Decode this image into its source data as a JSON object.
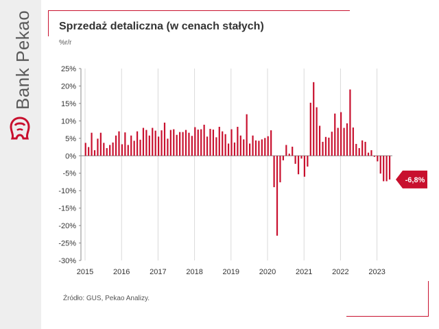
{
  "branding": {
    "name": "Bank Pekao",
    "accent": "#c8102e",
    "icon": "bison-logo-icon"
  },
  "header": {
    "title": "Sprzedaż detaliczna (w cenach stałych)",
    "unit": "%r/r"
  },
  "footer": {
    "source": "Źródło: GUS, Pekao Analizy."
  },
  "chart_data": {
    "type": "bar",
    "title": "Sprzedaż detaliczna (w cenach stałych)",
    "ylabel": "%r/r",
    "xlabel": "",
    "ylim": [
      -30,
      25
    ],
    "yticks": [
      25,
      20,
      15,
      10,
      5,
      0,
      -5,
      -10,
      -15,
      -20,
      -25,
      -30
    ],
    "ytick_labels": [
      "25%",
      "20%",
      "15%",
      "10%",
      "5%",
      "0%",
      "-5%",
      "-10%",
      "-15%",
      "-20%",
      "-25%",
      "-30%"
    ],
    "xtick_labels": [
      "2015",
      "2016",
      "2017",
      "2018",
      "2019",
      "2020",
      "2021",
      "2022",
      "2023"
    ],
    "grid": true,
    "grid_axis": "x",
    "bar_color": "#c8102e",
    "start": "2015-01",
    "frequency": "monthly",
    "values": [
      3.7,
      2.5,
      6.6,
      1.6,
      4.9,
      6.6,
      3.7,
      2.2,
      3.1,
      3.8,
      5.8,
      7.0,
      3.3,
      6.7,
      3.1,
      5.8,
      4.3,
      7.0,
      4.6,
      8.0,
      7.4,
      5.8,
      8.0,
      7.2,
      5.5,
      7.3,
      9.5,
      4.9,
      7.4,
      7.6,
      6.0,
      6.8,
      6.8,
      7.4,
      6.6,
      5.7,
      8.2,
      7.5,
      7.6,
      8.9,
      5.5,
      7.7,
      7.5,
      5.3,
      8.3,
      7.0,
      6.2,
      3.5,
      7.6,
      3.8,
      8.3,
      5.8,
      4.7,
      11.9,
      3.5,
      5.8,
      4.4,
      4.3,
      4.7,
      5.1,
      5.6,
      7.3,
      -9.0,
      -22.9,
      -7.6,
      -1.3,
      3.1,
      0.6,
      2.6,
      -2.3,
      -5.3,
      -0.8,
      -6.0,
      -3.1,
      15.2,
      21.1,
      13.9,
      8.6,
      4.0,
      5.4,
      5.2,
      6.9,
      12.1,
      8.0,
      12.5,
      8.0,
      9.3,
      19.0,
      8.1,
      3.4,
      2.2,
      4.4,
      4.0,
      0.9,
      1.6,
      -0.3,
      -1.6,
      -5.1,
      -7.3,
      -7.3,
      -6.8
    ],
    "annotations": [
      {
        "text": "-6,8%",
        "value": -6.8,
        "style": "red-callout-arrow"
      }
    ]
  }
}
